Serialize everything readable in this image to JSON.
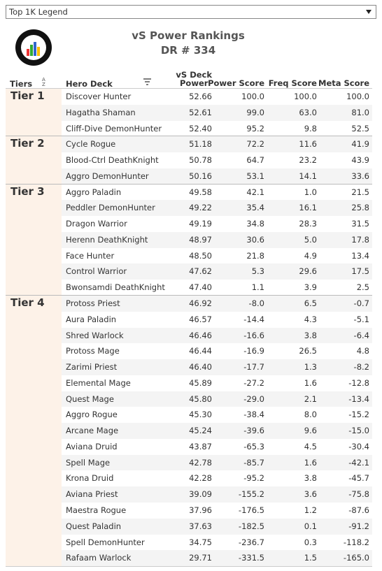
{
  "header": {
    "dropdown": "Top 1K Legend",
    "title": "vS Power Rankings",
    "subtitle": "DR # 334"
  },
  "table": {
    "columns": [
      "Tiers",
      "Hero Deck",
      "vS Deck\nPower",
      "Power Score",
      "Freq Score",
      "Meta Score"
    ],
    "tiers": [
      {
        "label": "Tier 1",
        "rows": [
          [
            "Discover Hunter",
            "52.66",
            "100.0",
            "100.0",
            "100.0"
          ],
          [
            "Hagatha Shaman",
            "52.61",
            "99.0",
            "63.0",
            "81.0"
          ],
          [
            "Cliff-Dive DemonHunter",
            "52.40",
            "95.2",
            "9.8",
            "52.5"
          ]
        ]
      },
      {
        "label": "Tier 2",
        "rows": [
          [
            "Cycle Rogue",
            "51.18",
            "72.2",
            "11.6",
            "41.9"
          ],
          [
            "Blood-Ctrl DeathKnight",
            "50.78",
            "64.7",
            "23.2",
            "43.9"
          ],
          [
            "Aggro DemonHunter",
            "50.16",
            "53.1",
            "14.1",
            "33.6"
          ]
        ]
      },
      {
        "label": "Tier 3",
        "rows": [
          [
            "Aggro Paladin",
            "49.58",
            "42.1",
            "1.0",
            "21.5"
          ],
          [
            "Peddler DemonHunter",
            "49.22",
            "35.4",
            "16.1",
            "25.8"
          ],
          [
            "Dragon Warrior",
            "49.19",
            "34.8",
            "28.3",
            "31.5"
          ],
          [
            "Herenn DeathKnight",
            "48.97",
            "30.6",
            "5.0",
            "17.8"
          ],
          [
            "Face Hunter",
            "48.50",
            "21.8",
            "4.9",
            "13.4"
          ],
          [
            "Control Warrior",
            "47.62",
            "5.3",
            "29.6",
            "17.5"
          ],
          [
            "Bwonsamdi DeathKnight",
            "47.40",
            "1.1",
            "3.9",
            "2.5"
          ]
        ]
      },
      {
        "label": "Tier 4",
        "rows": [
          [
            "Protoss Priest",
            "46.92",
            "-8.0",
            "6.5",
            "-0.7"
          ],
          [
            "Aura Paladin",
            "46.57",
            "-14.4",
            "4.3",
            "-5.1"
          ],
          [
            "Shred Warlock",
            "46.46",
            "-16.6",
            "3.8",
            "-6.4"
          ],
          [
            "Protoss Mage",
            "46.44",
            "-16.9",
            "26.5",
            "4.8"
          ],
          [
            "Zarimi Priest",
            "46.40",
            "-17.7",
            "1.3",
            "-8.2"
          ],
          [
            "Elemental Mage",
            "45.89",
            "-27.2",
            "1.6",
            "-12.8"
          ],
          [
            "Quest Mage",
            "45.80",
            "-29.0",
            "2.1",
            "-13.4"
          ],
          [
            "Aggro Rogue",
            "45.30",
            "-38.4",
            "8.0",
            "-15.2"
          ],
          [
            "Arcane Mage",
            "45.24",
            "-39.6",
            "9.6",
            "-15.0"
          ],
          [
            "Aviana Druid",
            "43.87",
            "-65.3",
            "4.5",
            "-30.4"
          ],
          [
            "Spell Mage",
            "42.78",
            "-85.7",
            "1.6",
            "-42.1"
          ],
          [
            "Krona Druid",
            "42.28",
            "-95.2",
            "3.8",
            "-45.7"
          ],
          [
            "Aviana Priest",
            "39.09",
            "-155.2",
            "3.6",
            "-75.8"
          ],
          [
            "Maestra Rogue",
            "37.96",
            "-176.5",
            "1.2",
            "-87.6"
          ],
          [
            "Quest Paladin",
            "37.63",
            "-182.5",
            "0.1",
            "-91.2"
          ],
          [
            "Spell DemonHunter",
            "34.75",
            "-236.7",
            "0.3",
            "-118.2"
          ],
          [
            "Rafaam Warlock",
            "29.71",
            "-331.5",
            "1.5",
            "-165.0"
          ]
        ]
      }
    ]
  }
}
